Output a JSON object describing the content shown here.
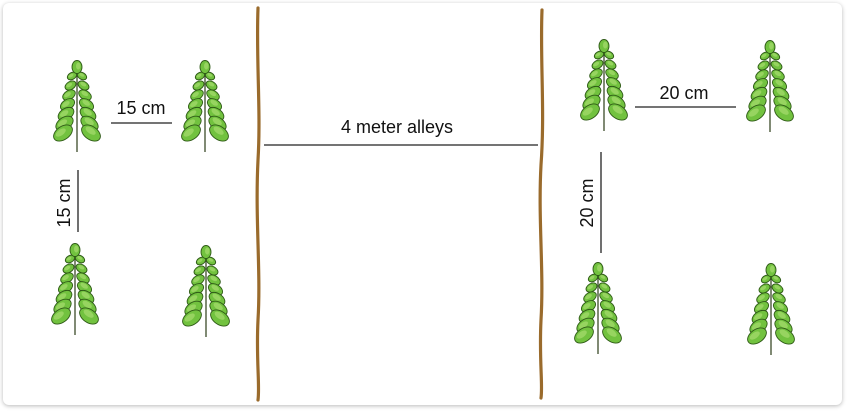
{
  "labels": {
    "left_h_spacing": "15 cm",
    "left_v_spacing": "15 cm",
    "alley": "4 meter alleys",
    "right_h_spacing": "20 cm",
    "right_v_spacing": "20 cm"
  },
  "colors": {
    "leaf_fill": "#72c23f",
    "leaf_highlight": "#a6db6f",
    "leaf_outline": "#2f5a17",
    "stem": "#3b4a2a",
    "divider": "#9a6b2c",
    "measure_line": "#222222"
  },
  "plants": {
    "left_group": {
      "rows": 2,
      "cols": 2,
      "spacing_cm": 15
    },
    "right_group": {
      "rows": 2,
      "cols": 2,
      "spacing_cm": 20
    }
  },
  "alley_width_m": 4,
  "icon": "moringa-leaf-icon"
}
